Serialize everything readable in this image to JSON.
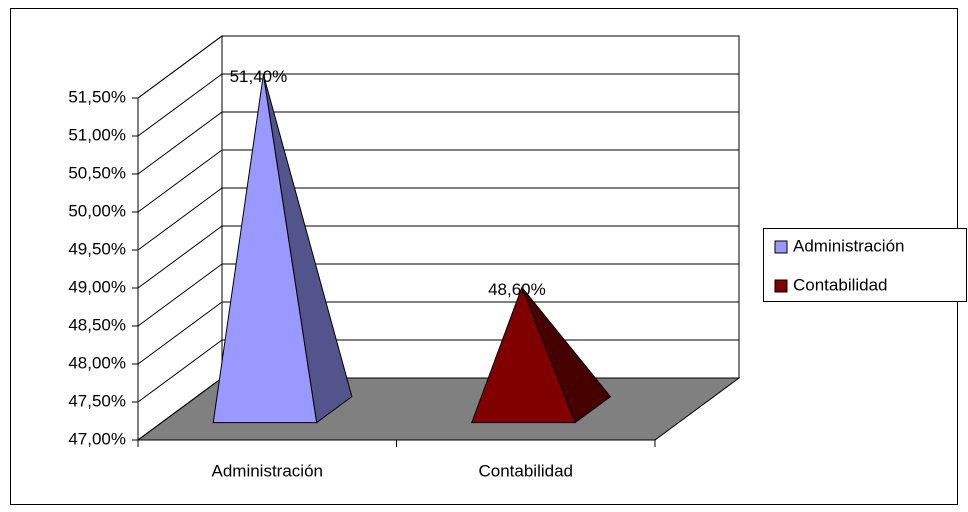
{
  "chart_data": {
    "type": "pyramid",
    "categories": [
      "Administración",
      "Contabilidad"
    ],
    "values": [
      51.4,
      48.6
    ],
    "value_labels": [
      "51,40%",
      "48,60%"
    ],
    "colors": [
      "#9999ff",
      "#800000"
    ],
    "ylim": [
      47,
      51.5
    ],
    "yticks": [
      {
        "value": 47,
        "label": "47,00%"
      },
      {
        "value": 47.5,
        "label": "47,50%"
      },
      {
        "value": 48,
        "label": "48,00%"
      },
      {
        "value": 48.5,
        "label": "48,50%"
      },
      {
        "value": 49,
        "label": "49,00%"
      },
      {
        "value": 49.5,
        "label": "49,50%"
      },
      {
        "value": 50,
        "label": "50,00%"
      },
      {
        "value": 50.5,
        "label": "50,50%"
      },
      {
        "value": 51,
        "label": "51,00%"
      },
      {
        "value": 51.5,
        "label": "51,50%"
      }
    ],
    "grid": true,
    "legend": "right"
  }
}
